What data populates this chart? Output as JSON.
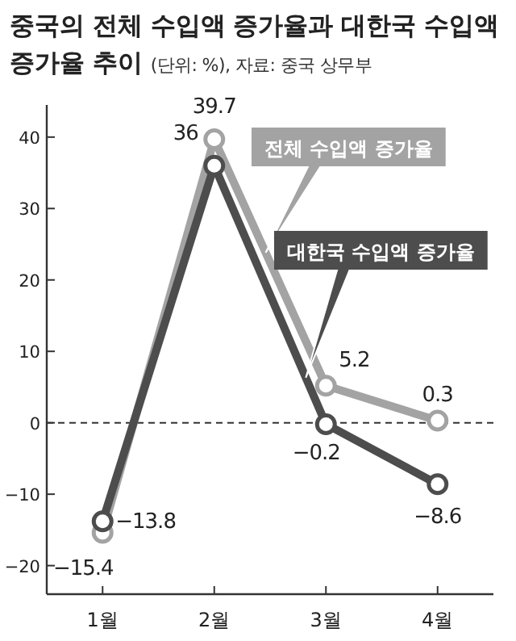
{
  "chart_data": {
    "type": "line",
    "title": "중국의 전체 수입액 증가율과 대한국 수입액 증가율 추이",
    "subtitle": "(단위: %), 자료: 중국 상무부",
    "categories": [
      "1월",
      "2월",
      "3월",
      "4월"
    ],
    "series": [
      {
        "name": "전체 수입액 증가율",
        "color": "#a3a3a3",
        "values": [
          -15.4,
          39.7,
          5.2,
          0.3
        ]
      },
      {
        "name": "대한국 수입액 증가율",
        "color": "#4d4d4d",
        "values": [
          -13.8,
          36,
          -0.2,
          -8.6
        ]
      }
    ],
    "ylim": [
      -24,
      44.5
    ],
    "yticks": [
      -20,
      -10,
      0,
      10,
      20,
      30,
      40
    ],
    "ref_lines": [
      {
        "axis": "y",
        "value": 0,
        "color": "#333333",
        "line_style": "dashed"
      }
    ],
    "data_labels": true,
    "marker": "circle",
    "line_style": "solid",
    "grid": false
  }
}
